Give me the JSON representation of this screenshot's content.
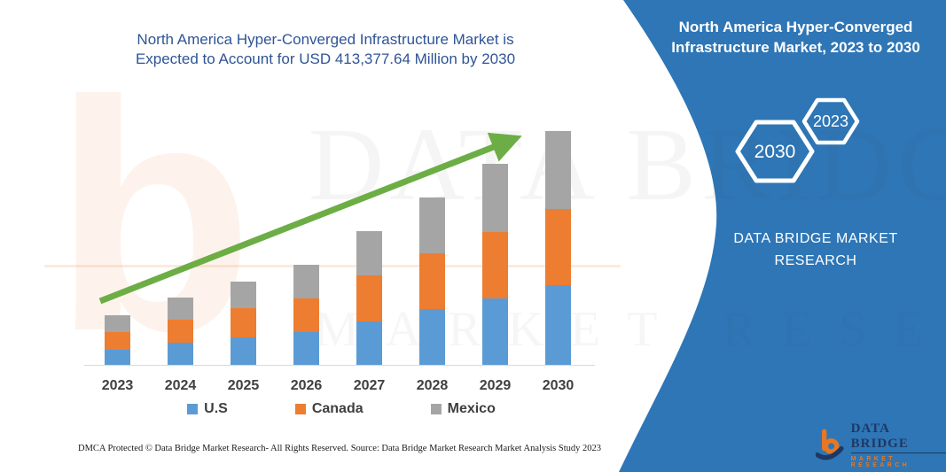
{
  "title": {
    "line1": "North America Hyper-Converged Infrastructure Market is",
    "line2": "Expected to Account for USD 413,377.64 Million by 2030"
  },
  "colors": {
    "title_text": "#2F5496",
    "panel_blue": "#2E76B6",
    "arrow_green": "#6CAE45",
    "us_blue": "#5B9BD5",
    "canada_orange": "#ED7D31",
    "mexico_gray": "#A5A5A5",
    "axis_line": "#D9D9D9",
    "label_gray": "#404040",
    "logo_navy": "#1F3864",
    "logo_orange": "#E87722"
  },
  "chart_data": {
    "type": "bar",
    "stacked": true,
    "title": "North America Hyper-Converged Infrastructure Market is Expected to Account for USD 413,377.64 Million by 2030",
    "unit": "USD Million",
    "categories": [
      "2023",
      "2024",
      "2025",
      "2026",
      "2027",
      "2028",
      "2029",
      "2030"
    ],
    "series": [
      {
        "name": "U.S",
        "color": "#5B9BD5",
        "values": [
          27100,
          39100,
          48500,
          57200,
          77100,
          99000,
          117800,
          140400
        ]
      },
      {
        "name": "Canada",
        "color": "#ED7D31",
        "values": [
          31300,
          40700,
          51000,
          60100,
          80900,
          99000,
          117800,
          136000
        ]
      },
      {
        "name": "Mexico",
        "color": "#A5A5A5",
        "values": [
          28600,
          39100,
          48000,
          59900,
          78200,
          98500,
          119500,
          137000
        ]
      }
    ],
    "totals_estimated": [
      87000,
      118900,
      147500,
      177200,
      236200,
      296500,
      355100,
      413400
    ],
    "xlabel": "",
    "ylabel": "",
    "ylim": [
      0,
      420000
    ],
    "grid": false,
    "legend_position": "bottom",
    "annotations": [
      "upward green trend arrow across bars"
    ]
  },
  "panel": {
    "title_line1": "North America Hyper-Converged",
    "title_line2": "Infrastructure Market, 2023 to 2030",
    "hexagon_back": "2030",
    "hexagon_front": "2023",
    "brand": "DATA BRIDGE MARKET RESEARCH",
    "logo_name": "DATA BRIDGE",
    "logo_tagline": "MARKET RESEARCH"
  },
  "watermark": {
    "line1": "DATA BRIDGE",
    "line2": "MARKET RESEARCH",
    "letter": "b"
  },
  "footer": {
    "left": "DMCA Protected © Data Bridge Market Research-  All Rights Reserved.",
    "right": "Source: Data Bridge Market Research  Market Analysis Study 2023"
  }
}
